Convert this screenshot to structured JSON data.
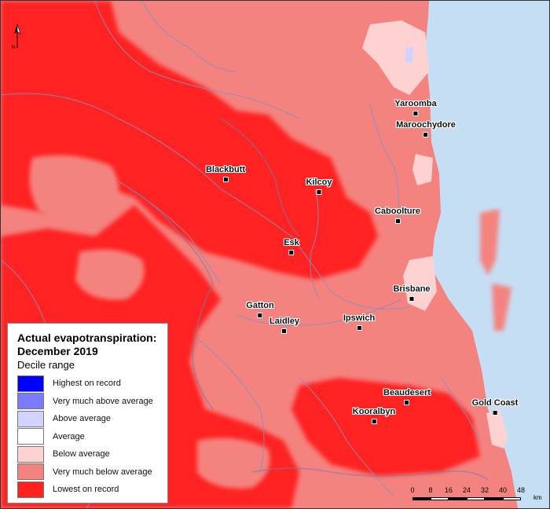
{
  "legend": {
    "title_line1": "Actual evapotranspiration:",
    "title_line2": "December 2019",
    "subtitle": "Decile range",
    "items": [
      {
        "label": "Highest on record",
        "color": "#0000ff"
      },
      {
        "label": "Very much above average",
        "color": "#7b7bff"
      },
      {
        "label": "Above average",
        "color": "#d2d2ff"
      },
      {
        "label": "Average",
        "color": "#ffffff"
      },
      {
        "label": "Below average",
        "color": "#ffd2d2"
      },
      {
        "label": "Very much below average",
        "color": "#f4837f"
      },
      {
        "label": "Lowest on record",
        "color": "#ff2020"
      }
    ]
  },
  "towns": {
    "yaroomba": "Yaroomba",
    "maroochydore": "Maroochydore",
    "blackbutt": "Blackbutt",
    "kilcoy": "Kilcoy",
    "caboolture": "Caboolture",
    "esk": "Esk",
    "brisbane": "Brisbane",
    "gatton": "Gatton",
    "laidley": "Laidley",
    "ipswich": "Ipswich",
    "beaudesert": "Beaudesert",
    "gold_coast": "Gold Coast",
    "kooralbyn": "Kooralbyn"
  },
  "north_arrow": {
    "label": "N"
  },
  "scale_bar": {
    "ticks": [
      "0",
      "8",
      "16",
      "24",
      "32",
      "40",
      "48"
    ],
    "unit": "km"
  },
  "colors": {
    "ocean": "#c6def4",
    "rivers": "#7f93c0"
  }
}
